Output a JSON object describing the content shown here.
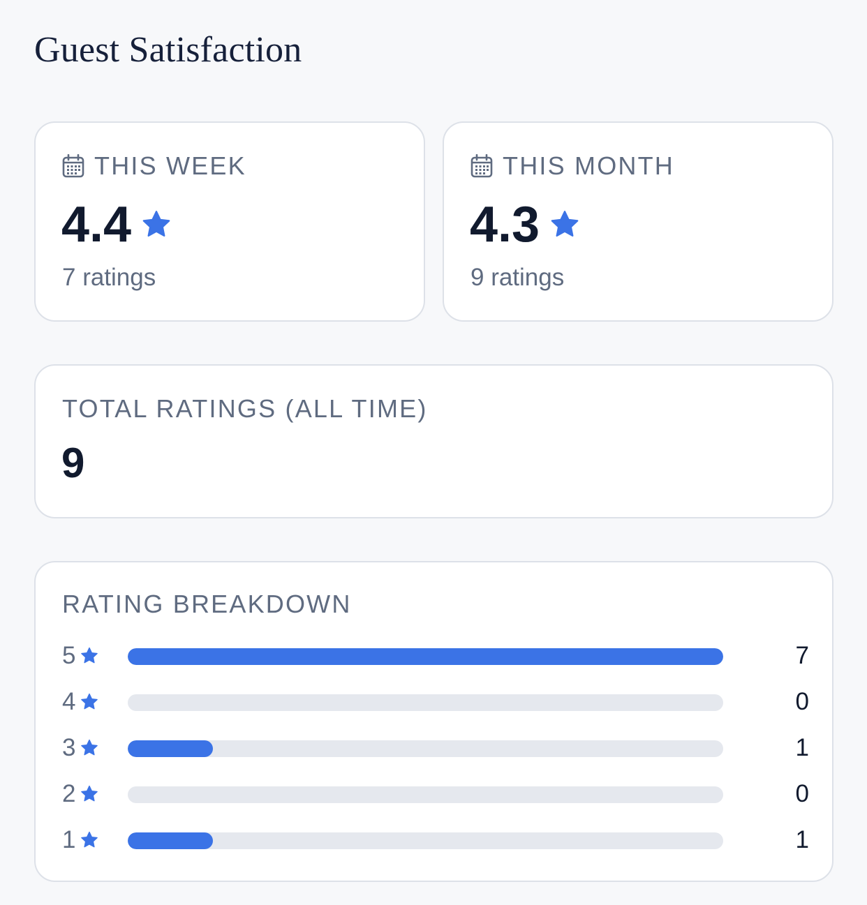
{
  "title": "Guest Satisfaction",
  "accent_color": "#3b73e6",
  "this_week": {
    "label": "THIS WEEK",
    "icon": "calendar-icon",
    "rating": "4.4",
    "ratings_text": "7 ratings"
  },
  "this_month": {
    "label": "THIS MONTH",
    "icon": "calendar-icon",
    "rating": "4.3",
    "ratings_text": "9 ratings"
  },
  "total": {
    "label": "TOTAL RATINGS (ALL TIME)",
    "value": "9"
  },
  "breakdown": {
    "label": "RATING BREAKDOWN",
    "max_count": 7,
    "rows": [
      {
        "stars": "5",
        "count": 7
      },
      {
        "stars": "4",
        "count": 0
      },
      {
        "stars": "3",
        "count": 1
      },
      {
        "stars": "2",
        "count": 0
      },
      {
        "stars": "1",
        "count": 1
      }
    ]
  }
}
